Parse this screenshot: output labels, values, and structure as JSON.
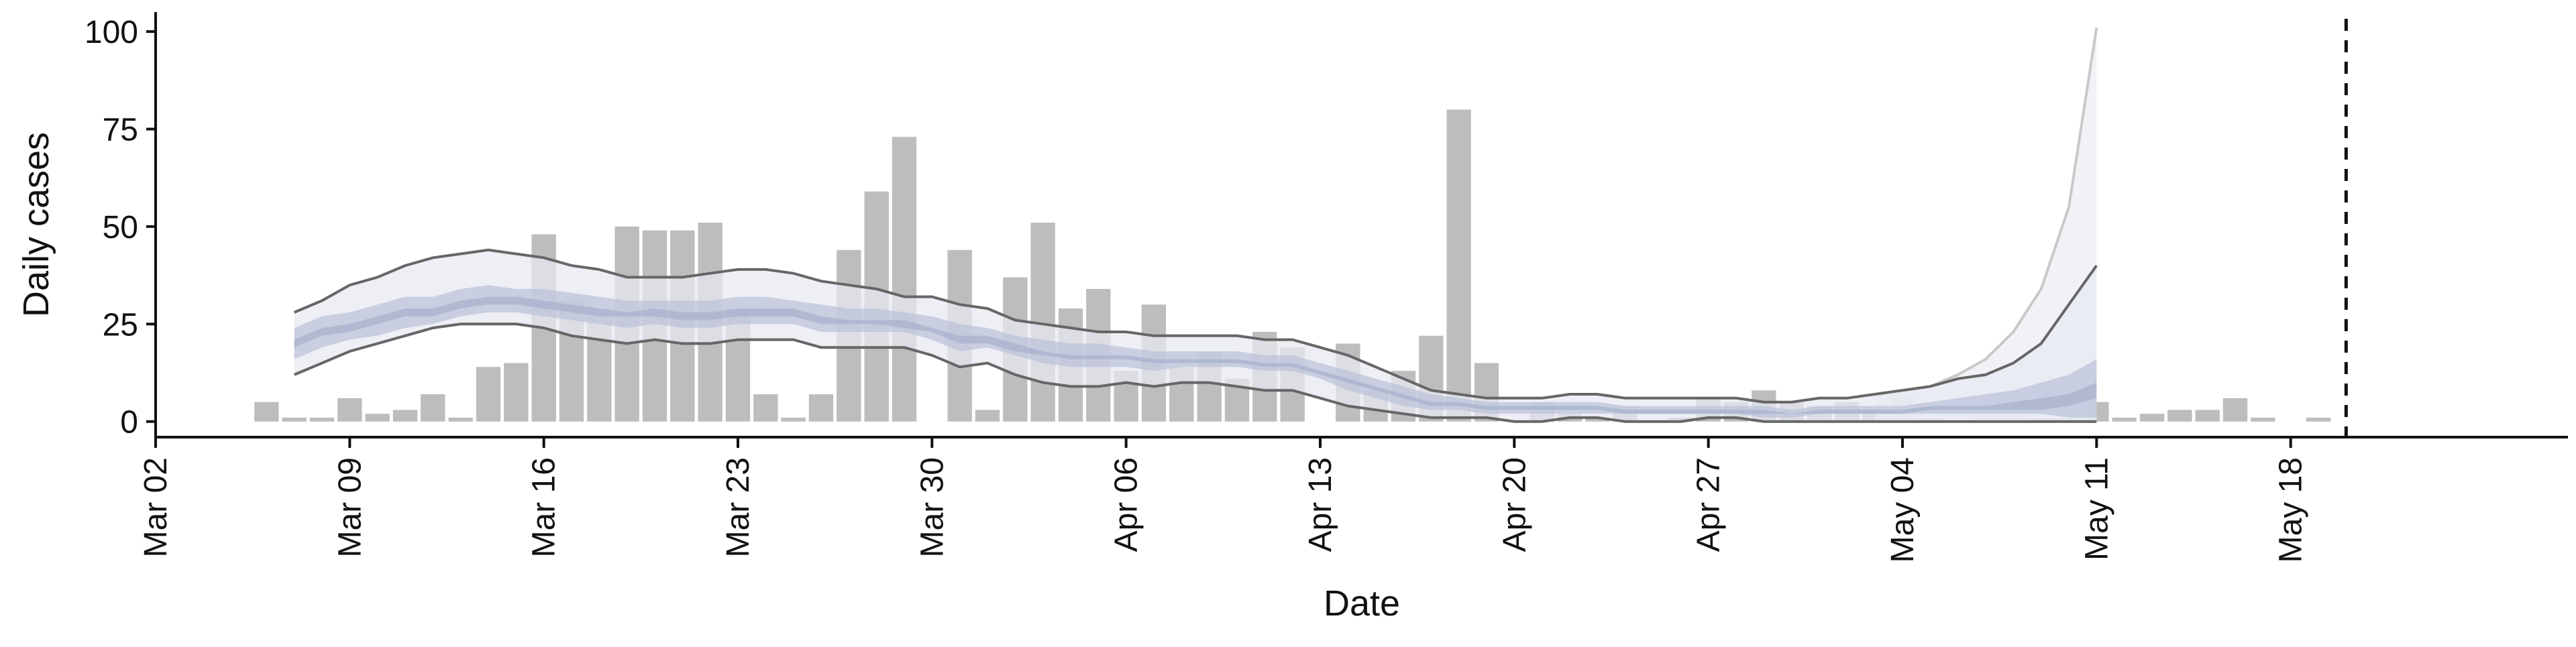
{
  "chart_data": {
    "type": "bar",
    "title": "",
    "xlabel": "Date",
    "ylabel": "Daily cases",
    "ylim": [
      -4,
      105
    ],
    "yticks": [
      0,
      25,
      50,
      75,
      100
    ],
    "x_tick_labels": [
      {
        "date": "2020-03-02",
        "label": "Mar 02"
      },
      {
        "date": "2020-03-09",
        "label": "Mar 09"
      },
      {
        "date": "2020-03-16",
        "label": "Mar 16"
      },
      {
        "date": "2020-03-23",
        "label": "Mar 23"
      },
      {
        "date": "2020-03-30",
        "label": "Mar 30"
      },
      {
        "date": "2020-04-06",
        "label": "Apr 06"
      },
      {
        "date": "2020-04-13",
        "label": "Apr 13"
      },
      {
        "date": "2020-04-20",
        "label": "Apr 20"
      },
      {
        "date": "2020-04-27",
        "label": "Apr 27"
      },
      {
        "date": "2020-05-04",
        "label": "May 04"
      },
      {
        "date": "2020-05-11",
        "label": "May 11"
      },
      {
        "date": "2020-05-18",
        "label": "May 18"
      }
    ],
    "xlim": [
      "2020-03-02",
      "2020-05-28"
    ],
    "grid": false,
    "legend": "none",
    "reference_line": {
      "date": "2020-05-20",
      "style": "dashed"
    },
    "colors": {
      "bars": "#bdbdbd",
      "outer_band": "#e7eaf2",
      "inner_band": "#b9c1d8",
      "bound_lines": "#666666",
      "projection_fill": "#eeeff4",
      "projection_line": "#c9c9c9"
    },
    "bars": {
      "series_name": "",
      "dates": [
        "2020-03-06",
        "2020-03-07",
        "2020-03-08",
        "2020-03-09",
        "2020-03-10",
        "2020-03-11",
        "2020-03-12",
        "2020-03-13",
        "2020-03-14",
        "2020-03-15",
        "2020-03-16",
        "2020-03-17",
        "2020-03-18",
        "2020-03-19",
        "2020-03-20",
        "2020-03-21",
        "2020-03-22",
        "2020-03-23",
        "2020-03-24",
        "2020-03-25",
        "2020-03-26",
        "2020-03-27",
        "2020-03-28",
        "2020-03-29",
        "2020-03-30",
        "2020-03-31",
        "2020-04-01",
        "2020-04-02",
        "2020-04-03",
        "2020-04-04",
        "2020-04-05",
        "2020-04-06",
        "2020-04-07",
        "2020-04-08",
        "2020-04-09",
        "2020-04-10",
        "2020-04-11",
        "2020-04-12",
        "2020-04-13",
        "2020-04-14",
        "2020-04-15",
        "2020-04-16",
        "2020-04-17",
        "2020-04-18",
        "2020-04-19",
        "2020-04-20",
        "2020-04-21",
        "2020-04-22",
        "2020-04-23",
        "2020-04-24",
        "2020-04-25",
        "2020-04-26",
        "2020-04-27",
        "2020-04-28",
        "2020-04-29",
        "2020-04-30",
        "2020-05-01",
        "2020-05-02",
        "2020-05-03",
        "2020-05-04",
        "2020-05-05",
        "2020-05-06",
        "2020-05-07",
        "2020-05-08",
        "2020-05-09",
        "2020-05-10",
        "2020-05-11",
        "2020-05-12",
        "2020-05-13",
        "2020-05-14",
        "2020-05-15",
        "2020-05-16",
        "2020-05-17",
        "2020-05-18",
        "2020-05-19"
      ],
      "values": [
        5,
        1,
        1,
        6,
        2,
        3,
        7,
        1,
        14,
        15,
        48,
        31,
        29,
        50,
        49,
        49,
        51,
        29,
        7,
        1,
        7,
        44,
        59,
        73,
        0,
        44,
        3,
        37,
        51,
        29,
        34,
        13,
        30,
        14,
        18,
        11,
        23,
        19,
        0,
        20,
        8,
        13,
        22,
        80,
        15,
        0,
        5,
        2,
        1,
        4,
        0,
        1,
        6,
        5,
        8,
        5,
        4,
        5,
        3,
        6,
        1,
        0,
        3,
        4,
        1,
        1,
        5,
        1,
        2,
        3,
        3,
        6,
        1,
        0,
        1
      ]
    },
    "estimate": {
      "dates": [
        "2020-03-07",
        "2020-03-08",
        "2020-03-09",
        "2020-03-10",
        "2020-03-11",
        "2020-03-12",
        "2020-03-13",
        "2020-03-14",
        "2020-03-15",
        "2020-03-16",
        "2020-03-17",
        "2020-03-18",
        "2020-03-19",
        "2020-03-20",
        "2020-03-21",
        "2020-03-22",
        "2020-03-23",
        "2020-03-24",
        "2020-03-25",
        "2020-03-26",
        "2020-03-27",
        "2020-03-28",
        "2020-03-29",
        "2020-03-30",
        "2020-03-31",
        "2020-04-01",
        "2020-04-02",
        "2020-04-03",
        "2020-04-04",
        "2020-04-05",
        "2020-04-06",
        "2020-04-07",
        "2020-04-08",
        "2020-04-09",
        "2020-04-10",
        "2020-04-11",
        "2020-04-12",
        "2020-04-13",
        "2020-04-14",
        "2020-04-15",
        "2020-04-16",
        "2020-04-17",
        "2020-04-18",
        "2020-04-19",
        "2020-04-20",
        "2020-04-21",
        "2020-04-22",
        "2020-04-23",
        "2020-04-24",
        "2020-04-25",
        "2020-04-26",
        "2020-04-27",
        "2020-04-28",
        "2020-04-29",
        "2020-04-30",
        "2020-05-01",
        "2020-05-02",
        "2020-05-03",
        "2020-05-04",
        "2020-05-05",
        "2020-05-06",
        "2020-05-07",
        "2020-05-08",
        "2020-05-09",
        "2020-05-10",
        "2020-05-11"
      ],
      "upper": [
        28,
        31,
        35,
        37,
        40,
        42,
        43,
        44,
        43,
        42,
        40,
        39,
        37,
        37,
        37,
        38,
        39,
        39,
        38,
        36,
        35,
        34,
        32,
        32,
        30,
        29,
        26,
        25,
        24,
        23,
        23,
        22,
        22,
        22,
        22,
        21,
        21,
        19,
        17,
        14,
        11,
        8,
        7,
        6,
        6,
        6,
        7,
        7,
        6,
        6,
        6,
        6,
        6,
        5,
        5,
        6,
        6,
        7,
        8,
        9,
        11,
        12,
        15,
        20,
        30,
        40
      ],
      "lower": [
        12,
        15,
        18,
        20,
        22,
        24,
        25,
        25,
        25,
        24,
        22,
        21,
        20,
        21,
        20,
        20,
        21,
        21,
        21,
        19,
        19,
        19,
        19,
        17,
        14,
        15,
        12,
        10,
        9,
        9,
        10,
        9,
        10,
        10,
        9,
        8,
        8,
        6,
        4,
        3,
        2,
        1,
        1,
        1,
        0,
        0,
        1,
        1,
        0,
        0,
        0,
        1,
        1,
        0,
        0,
        0,
        0,
        0,
        0,
        0,
        0,
        0,
        0,
        0,
        0,
        0
      ],
      "ci50_upper": [
        24,
        27,
        28,
        30,
        32,
        32,
        34,
        35,
        34,
        34,
        33,
        32,
        31,
        31,
        31,
        31,
        32,
        32,
        31,
        30,
        29,
        29,
        28,
        27,
        25,
        24,
        22,
        21,
        20,
        20,
        19,
        18,
        18,
        18,
        18,
        17,
        17,
        15,
        13,
        11,
        9,
        7,
        6,
        5,
        5,
        5,
        5,
        5,
        4,
        4,
        4,
        4,
        4,
        4,
        3,
        4,
        4,
        4,
        4,
        5,
        6,
        7,
        8,
        10,
        12,
        16
      ],
      "ci50_lower": [
        16,
        19,
        21,
        22,
        24,
        25,
        27,
        28,
        28,
        27,
        26,
        25,
        24,
        25,
        24,
        24,
        25,
        25,
        25,
        23,
        23,
        23,
        23,
        21,
        18,
        19,
        17,
        15,
        14,
        14,
        14,
        13,
        14,
        14,
        14,
        13,
        13,
        11,
        8,
        6,
        4,
        3,
        3,
        2,
        2,
        2,
        2,
        2,
        2,
        2,
        2,
        2,
        2,
        1,
        1,
        2,
        2,
        2,
        2,
        2,
        2,
        2,
        2,
        2,
        1,
        1
      ],
      "ci20_upper": [
        21,
        24,
        25,
        27,
        29,
        29,
        31,
        32,
        32,
        31,
        30,
        29,
        28,
        29,
        28,
        28,
        29,
        29,
        29,
        27,
        26,
        26,
        26,
        24,
        22,
        22,
        20,
        18,
        17,
        17,
        17,
        16,
        16,
        16,
        16,
        15,
        15,
        13,
        11,
        9,
        7,
        5,
        5,
        4,
        4,
        4,
        4,
        4,
        3,
        3,
        3,
        3,
        3,
        3,
        2,
        3,
        3,
        3,
        3,
        4,
        4,
        4,
        5,
        6,
        7,
        10
      ],
      "ci20_lower": [
        19,
        22,
        23,
        25,
        27,
        27,
        29,
        30,
        30,
        29,
        28,
        27,
        27,
        27,
        26,
        26,
        27,
        27,
        27,
        25,
        25,
        25,
        24,
        23,
        20,
        20,
        18,
        17,
        16,
        16,
        16,
        15,
        15,
        15,
        15,
        14,
        14,
        12,
        10,
        8,
        6,
        4,
        4,
        3,
        3,
        3,
        3,
        3,
        2,
        2,
        2,
        2,
        2,
        2,
        2,
        2,
        2,
        2,
        2,
        3,
        3,
        3,
        3,
        3,
        4,
        6
      ]
    },
    "projection": {
      "dates": [
        "2020-05-03",
        "2020-05-04",
        "2020-05-05",
        "2020-05-06",
        "2020-05-07",
        "2020-05-08",
        "2020-05-09",
        "2020-05-10",
        "2020-05-11"
      ],
      "upper": [
        7,
        8,
        9,
        12,
        16,
        23,
        34,
        55,
        101
      ]
    }
  }
}
